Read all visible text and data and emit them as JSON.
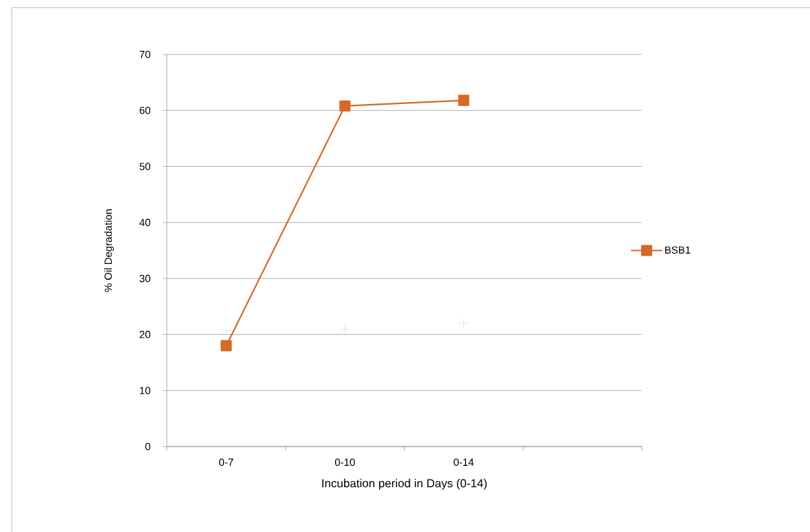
{
  "chart_data": {
    "type": "line",
    "xlabel": "Incubation period in Days (0-14)",
    "ylabel": "% Oil Degradation",
    "categories": [
      "0-7",
      "0-10",
      "0-14",
      null
    ],
    "series": [
      {
        "name": "BSB1",
        "color": "#d46a28",
        "values": [
          18,
          60.8,
          61.8,
          null
        ],
        "marker": "square"
      },
      {
        "type": "scatter",
        "color": "#c9d7ef",
        "values": [
          20.7,
          20.9,
          22,
          null
        ],
        "marker": "cross"
      }
    ],
    "ylim": [
      0,
      70
    ],
    "yticks": [
      0,
      10,
      20,
      30,
      40,
      50,
      60,
      70
    ],
    "grid": "y",
    "legend": "right"
  }
}
